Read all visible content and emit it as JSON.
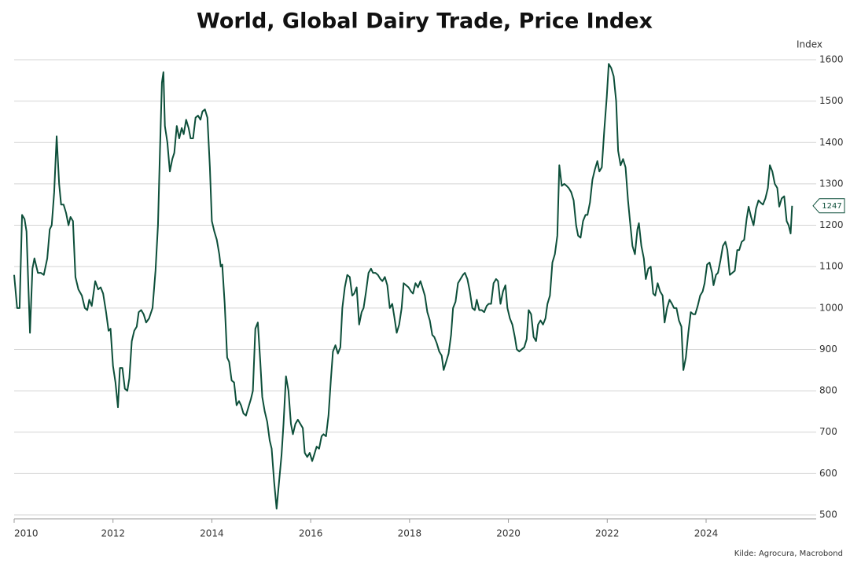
{
  "chart_data": {
    "type": "line",
    "title": "World, Global Dairy Trade, Price Index",
    "y_axis_label": "Index",
    "source": "Kilde: Agrocura, Macrobond",
    "color": "#0d4f3a",
    "grid": true,
    "xlim": [
      2010,
      2026.1
    ],
    "xticks": [
      2010,
      2012,
      2014,
      2016,
      2018,
      2020,
      2022,
      2024
    ],
    "ylim": [
      500,
      1600
    ],
    "yticks": [
      500,
      600,
      700,
      800,
      900,
      1000,
      1100,
      1200,
      1300,
      1400,
      1500,
      1600
    ],
    "x": [
      2010.0,
      2010.06,
      2010.11,
      2010.16,
      2010.21,
      2010.25,
      2010.32,
      2010.37,
      2010.41,
      2010.48,
      2010.54,
      2010.6,
      2010.67,
      2010.72,
      2010.76,
      2010.81,
      2010.86,
      2010.91,
      2010.95,
      2011.0,
      2011.05,
      2011.1,
      2011.14,
      2011.19,
      2011.24,
      2011.3,
      2011.37,
      2011.43,
      2011.48,
      2011.52,
      2011.57,
      2011.64,
      2011.7,
      2011.75,
      2011.8,
      2011.86,
      2011.91,
      2011.95,
      2012.0,
      2012.05,
      2012.1,
      2012.14,
      2012.19,
      2012.24,
      2012.29,
      2012.33,
      2012.38,
      2012.43,
      2012.48,
      2012.52,
      2012.57,
      2012.62,
      2012.67,
      2012.73,
      2012.8,
      2012.86,
      2012.91,
      2012.95,
      2012.99,
      2013.02,
      2013.05,
      2013.1,
      2013.15,
      2013.2,
      2013.24,
      2013.29,
      2013.34,
      2013.39,
      2013.43,
      2013.48,
      2013.53,
      2013.57,
      2013.62,
      2013.67,
      2013.72,
      2013.77,
      2013.81,
      2013.86,
      2013.91,
      2013.96,
      2014.0,
      2014.05,
      2014.1,
      2014.15,
      2014.18,
      2014.21,
      2014.26,
      2014.31,
      2014.35,
      2014.4,
      2014.45,
      2014.5,
      2014.55,
      2014.59,
      2014.64,
      2014.69,
      2014.74,
      2014.79,
      2014.83,
      2014.88,
      2014.93,
      2014.98,
      2015.02,
      2015.07,
      2015.12,
      2015.17,
      2015.21,
      2015.26,
      2015.31,
      2015.36,
      2015.41,
      2015.45,
      2015.5,
      2015.55,
      2015.6,
      2015.64,
      2015.69,
      2015.74,
      2015.79,
      2015.84,
      2015.88,
      2015.93,
      2015.98,
      2016.03,
      2016.07,
      2016.12,
      2016.17,
      2016.22,
      2016.26,
      2016.31,
      2016.36,
      2016.41,
      2016.45,
      2016.5,
      2016.55,
      2016.6,
      2016.64,
      2016.69,
      2016.74,
      2016.79,
      2016.84,
      2016.88,
      2016.93,
      2016.98,
      2017.03,
      2017.07,
      2017.12,
      2017.17,
      2017.22,
      2017.26,
      2017.31,
      2017.36,
      2017.41,
      2017.45,
      2017.5,
      2017.55,
      2017.6,
      2017.65,
      2017.69,
      2017.74,
      2017.79,
      2017.84,
      2017.88,
      2017.93,
      2017.98,
      2018.03,
      2018.07,
      2018.12,
      2018.17,
      2018.22,
      2018.26,
      2018.31,
      2018.36,
      2018.41,
      2018.46,
      2018.5,
      2018.55,
      2018.6,
      2018.65,
      2018.69,
      2018.74,
      2018.79,
      2018.84,
      2018.88,
      2018.93,
      2018.98,
      2019.03,
      2019.08,
      2019.12,
      2019.17,
      2019.22,
      2019.27,
      2019.32,
      2019.36,
      2019.41,
      2019.46,
      2019.51,
      2019.56,
      2019.6,
      2019.65,
      2019.7,
      2019.75,
      2019.79,
      2019.84,
      2019.89,
      2019.94,
      2019.98,
      2020.03,
      2020.08,
      2020.13,
      2020.17,
      2020.22,
      2020.27,
      2020.32,
      2020.37,
      2020.41,
      2020.46,
      2020.51,
      2020.56,
      2020.6,
      2020.65,
      2020.7,
      2020.75,
      2020.79,
      2020.84,
      2020.89,
      2020.94,
      2020.99,
      2021.03,
      2021.08,
      2021.13,
      2021.18,
      2021.22,
      2021.27,
      2021.32,
      2021.37,
      2021.41,
      2021.46,
      2021.51,
      2021.56,
      2021.6,
      2021.65,
      2021.7,
      2021.75,
      2021.8,
      2021.84,
      2021.89,
      2021.94,
      2021.99,
      2022.03,
      2022.08,
      2022.13,
      2022.18,
      2022.22,
      2022.27,
      2022.32,
      2022.37,
      2022.42,
      2022.46,
      2022.51,
      2022.56,
      2022.61,
      2022.64,
      2022.69,
      2022.74,
      2022.78,
      2022.83,
      2022.88,
      2022.93,
      2022.97,
      2023.02,
      2023.07,
      2023.12,
      2023.16,
      2023.21,
      2023.26,
      2023.31,
      2023.35,
      2023.4,
      2023.45,
      2023.5,
      2023.54,
      2023.59,
      2023.64,
      2023.69,
      2023.74,
      2023.78,
      2023.83,
      2023.88,
      2023.93,
      2023.97,
      2024.02,
      2024.07,
      2024.12,
      2024.15,
      2024.2,
      2024.24,
      2024.29,
      2024.34,
      2024.39,
      2024.43,
      2024.48,
      2024.53,
      2024.58,
      2024.63,
      2024.67,
      2024.72,
      2024.77,
      2024.82,
      2024.86,
      2024.91,
      2024.96,
      2025.01,
      2025.06,
      2025.1,
      2025.15,
      2025.2,
      2025.25,
      2025.29,
      2025.34,
      2025.39,
      2025.44,
      2025.48,
      2025.53,
      2025.58,
      2025.63,
      2025.67,
      2025.71,
      2025.74
    ],
    "values": [
      1080,
      1000,
      1000,
      1225,
      1215,
      1185,
      940,
      1095,
      1120,
      1085,
      1085,
      1080,
      1120,
      1190,
      1200,
      1280,
      1415,
      1300,
      1250,
      1250,
      1230,
      1200,
      1220,
      1210,
      1075,
      1045,
      1030,
      1000,
      995,
      1020,
      1005,
      1065,
      1045,
      1050,
      1035,
      990,
      945,
      950,
      860,
      820,
      760,
      855,
      855,
      805,
      800,
      830,
      920,
      945,
      955,
      990,
      995,
      985,
      965,
      975,
      1000,
      1090,
      1200,
      1380,
      1545,
      1570,
      1440,
      1400,
      1330,
      1360,
      1375,
      1440,
      1410,
      1435,
      1420,
      1455,
      1435,
      1410,
      1410,
      1460,
      1465,
      1455,
      1475,
      1480,
      1460,
      1340,
      1210,
      1185,
      1165,
      1130,
      1100,
      1105,
      1010,
      880,
      870,
      825,
      820,
      765,
      775,
      765,
      745,
      740,
      760,
      780,
      800,
      950,
      965,
      870,
      785,
      750,
      725,
      680,
      660,
      580,
      515,
      580,
      645,
      720,
      835,
      800,
      720,
      695,
      720,
      730,
      720,
      710,
      650,
      640,
      650,
      630,
      645,
      665,
      660,
      690,
      695,
      690,
      740,
      830,
      895,
      910,
      890,
      905,
      1000,
      1050,
      1080,
      1075,
      1030,
      1035,
      1050,
      960,
      990,
      1000,
      1040,
      1085,
      1095,
      1085,
      1085,
      1080,
      1070,
      1065,
      1075,
      1055,
      1000,
      1010,
      980,
      940,
      960,
      1000,
      1060,
      1055,
      1050,
      1040,
      1035,
      1060,
      1050,
      1065,
      1050,
      1030,
      990,
      970,
      935,
      930,
      915,
      895,
      885,
      850,
      870,
      890,
      935,
      1000,
      1015,
      1060,
      1070,
      1080,
      1085,
      1070,
      1040,
      1000,
      995,
      1020,
      995,
      995,
      990,
      1005,
      1010,
      1010,
      1060,
      1070,
      1065,
      1010,
      1040,
      1055,
      1000,
      975,
      960,
      930,
      900,
      895,
      900,
      905,
      925,
      995,
      985,
      930,
      920,
      960,
      970,
      960,
      975,
      1010,
      1030,
      1110,
      1130,
      1175,
      1345,
      1295,
      1300,
      1295,
      1290,
      1280,
      1260,
      1200,
      1175,
      1170,
      1210,
      1225,
      1225,
      1255,
      1310,
      1335,
      1355,
      1330,
      1340,
      1430,
      1510,
      1590,
      1580,
      1560,
      1500,
      1380,
      1345,
      1360,
      1340,
      1260,
      1210,
      1150,
      1130,
      1190,
      1205,
      1150,
      1120,
      1070,
      1095,
      1100,
      1035,
      1030,
      1060,
      1040,
      1030,
      965,
      1000,
      1020,
      1010,
      1000,
      1000,
      970,
      955,
      850,
      880,
      940,
      990,
      985,
      985,
      1005,
      1030,
      1040,
      1060,
      1105,
      1110,
      1085,
      1055,
      1080,
      1085,
      1115,
      1150,
      1160,
      1140,
      1080,
      1085,
      1090,
      1140,
      1140,
      1160,
      1165,
      1215,
      1245,
      1220,
      1200,
      1240,
      1260,
      1255,
      1250,
      1265,
      1290,
      1345,
      1330,
      1300,
      1290,
      1245,
      1265,
      1270,
      1210,
      1200,
      1180,
      1247
    ]
  }
}
